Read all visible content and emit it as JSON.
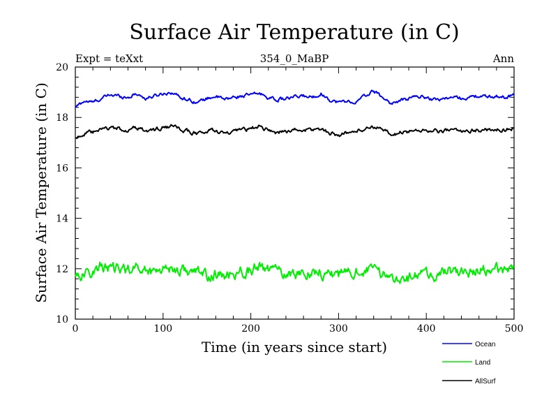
{
  "chart_data": {
    "type": "line",
    "title": "Surface Air Temperature (in C)",
    "subtitle_left": "Expt = teXxt",
    "subtitle_center": "354_0_MaBP",
    "subtitle_right": "Ann",
    "xlabel": "Time (in years since start)",
    "ylabel": "Surface Air Temperature (in C)",
    "xlim": [
      0,
      500
    ],
    "ylim": [
      10,
      20
    ],
    "xticks": [
      0,
      100,
      200,
      300,
      400,
      500
    ],
    "yticks": [
      10,
      12,
      14,
      16,
      18,
      20
    ],
    "legend_position": "bottom-right",
    "series": [
      {
        "name": "Ocean",
        "color": "#0000ff",
        "anchors": [
          [
            0,
            18.4
          ],
          [
            10,
            18.65
          ],
          [
            20,
            18.6
          ],
          [
            30,
            18.75
          ],
          [
            40,
            18.9
          ],
          [
            50,
            18.85
          ],
          [
            60,
            18.8
          ],
          [
            70,
            18.95
          ],
          [
            80,
            18.75
          ],
          [
            90,
            18.85
          ],
          [
            100,
            18.95
          ],
          [
            110,
            19.0
          ],
          [
            120,
            18.8
          ],
          [
            130,
            18.7
          ],
          [
            140,
            18.6
          ],
          [
            150,
            18.75
          ],
          [
            160,
            18.85
          ],
          [
            170,
            18.7
          ],
          [
            180,
            18.8
          ],
          [
            190,
            18.85
          ],
          [
            200,
            18.9
          ],
          [
            210,
            18.95
          ],
          [
            220,
            18.8
          ],
          [
            230,
            18.7
          ],
          [
            240,
            18.75
          ],
          [
            250,
            18.8
          ],
          [
            260,
            18.85
          ],
          [
            270,
            18.8
          ],
          [
            280,
            18.95
          ],
          [
            290,
            18.7
          ],
          [
            300,
            18.6
          ],
          [
            310,
            18.65
          ],
          [
            320,
            18.6
          ],
          [
            330,
            18.85
          ],
          [
            340,
            19.05
          ],
          [
            350,
            18.8
          ],
          [
            360,
            18.55
          ],
          [
            370,
            18.65
          ],
          [
            380,
            18.75
          ],
          [
            390,
            18.85
          ],
          [
            400,
            18.8
          ],
          [
            410,
            18.7
          ],
          [
            420,
            18.75
          ],
          [
            430,
            18.8
          ],
          [
            440,
            18.75
          ],
          [
            450,
            18.8
          ],
          [
            460,
            18.85
          ],
          [
            470,
            18.8
          ],
          [
            480,
            18.85
          ],
          [
            490,
            18.8
          ],
          [
            500,
            18.9
          ]
        ],
        "noise": 0.07
      },
      {
        "name": "Land",
        "color": "#00ee00",
        "anchors": [
          [
            0,
            11.8
          ],
          [
            10,
            11.75
          ],
          [
            20,
            11.9
          ],
          [
            30,
            12.1
          ],
          [
            40,
            12.0
          ],
          [
            50,
            11.95
          ],
          [
            60,
            12.0
          ],
          [
            70,
            12.05
          ],
          [
            80,
            11.95
          ],
          [
            90,
            11.9
          ],
          [
            100,
            12.05
          ],
          [
            110,
            12.0
          ],
          [
            120,
            11.95
          ],
          [
            130,
            11.9
          ],
          [
            140,
            11.85
          ],
          [
            150,
            11.7
          ],
          [
            160,
            11.75
          ],
          [
            170,
            11.7
          ],
          [
            180,
            11.8
          ],
          [
            190,
            11.9
          ],
          [
            200,
            11.95
          ],
          [
            210,
            12.05
          ],
          [
            220,
            11.95
          ],
          [
            230,
            11.9
          ],
          [
            240,
            11.85
          ],
          [
            250,
            11.8
          ],
          [
            260,
            11.8
          ],
          [
            270,
            11.9
          ],
          [
            280,
            11.85
          ],
          [
            290,
            11.8
          ],
          [
            300,
            11.75
          ],
          [
            310,
            11.8
          ],
          [
            320,
            11.9
          ],
          [
            330,
            11.95
          ],
          [
            340,
            11.9
          ],
          [
            350,
            11.8
          ],
          [
            360,
            11.65
          ],
          [
            370,
            11.7
          ],
          [
            380,
            11.6
          ],
          [
            390,
            11.7
          ],
          [
            400,
            11.8
          ],
          [
            410,
            11.75
          ],
          [
            420,
            11.85
          ],
          [
            430,
            11.9
          ],
          [
            440,
            11.9
          ],
          [
            450,
            11.85
          ],
          [
            460,
            11.9
          ],
          [
            470,
            11.95
          ],
          [
            480,
            12.0
          ],
          [
            490,
            12.0
          ],
          [
            500,
            12.1
          ]
        ],
        "noise": 0.22
      },
      {
        "name": "AllSurf",
        "color": "#000000",
        "anchors": [
          [
            0,
            17.2
          ],
          [
            10,
            17.35
          ],
          [
            20,
            17.4
          ],
          [
            30,
            17.5
          ],
          [
            40,
            17.6
          ],
          [
            50,
            17.55
          ],
          [
            60,
            17.5
          ],
          [
            70,
            17.6
          ],
          [
            80,
            17.45
          ],
          [
            90,
            17.5
          ],
          [
            100,
            17.6
          ],
          [
            110,
            17.65
          ],
          [
            120,
            17.5
          ],
          [
            130,
            17.45
          ],
          [
            140,
            17.35
          ],
          [
            150,
            17.45
          ],
          [
            160,
            17.5
          ],
          [
            170,
            17.35
          ],
          [
            180,
            17.4
          ],
          [
            190,
            17.5
          ],
          [
            200,
            17.55
          ],
          [
            210,
            17.65
          ],
          [
            220,
            17.5
          ],
          [
            230,
            17.4
          ],
          [
            240,
            17.45
          ],
          [
            250,
            17.5
          ],
          [
            260,
            17.5
          ],
          [
            270,
            17.5
          ],
          [
            280,
            17.55
          ],
          [
            290,
            17.4
          ],
          [
            300,
            17.3
          ],
          [
            310,
            17.4
          ],
          [
            320,
            17.45
          ],
          [
            330,
            17.55
          ],
          [
            340,
            17.65
          ],
          [
            350,
            17.5
          ],
          [
            360,
            17.3
          ],
          [
            370,
            17.4
          ],
          [
            380,
            17.45
          ],
          [
            390,
            17.5
          ],
          [
            400,
            17.5
          ],
          [
            410,
            17.45
          ],
          [
            420,
            17.45
          ],
          [
            430,
            17.5
          ],
          [
            440,
            17.45
          ],
          [
            450,
            17.5
          ],
          [
            460,
            17.5
          ],
          [
            470,
            17.5
          ],
          [
            480,
            17.55
          ],
          [
            490,
            17.5
          ],
          [
            500,
            17.55
          ]
        ],
        "noise": 0.08
      }
    ]
  }
}
